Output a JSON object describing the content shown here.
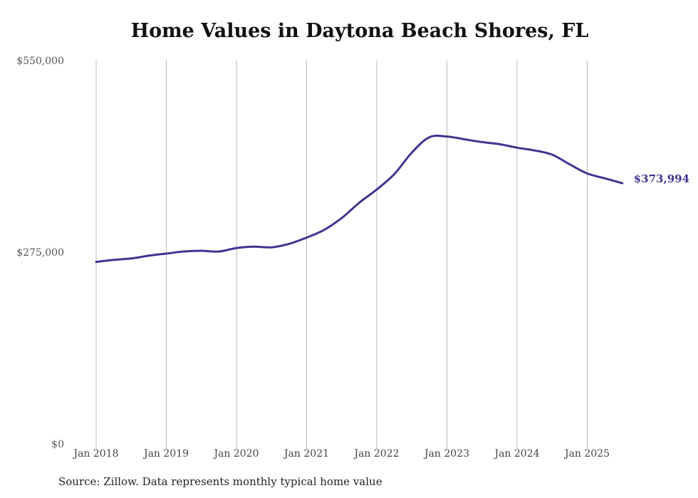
{
  "title": "Home Values in Daytona Beach Shores, FL",
  "source": "Source: Zillow. Data represents monthly typical home value",
  "chart_data": {
    "type": "line",
    "title": "Home Values in Daytona Beach Shores, FL",
    "xlabel": "",
    "ylabel": "",
    "ylim": [
      0,
      550000
    ],
    "y_ticks": [
      "$0",
      "$275,000",
      "$550,000"
    ],
    "y_tick_values": [
      0,
      275000,
      550000
    ],
    "x_ticks": [
      "Jan 2018",
      "Jan 2019",
      "Jan 2020",
      "Jan 2021",
      "Jan 2022",
      "Jan 2023",
      "Jan 2024",
      "Jan 2025"
    ],
    "x_range": [
      "2018-01",
      "2025-07"
    ],
    "grid": "vertical lines at January of each year",
    "line_color": "#3f3590",
    "end_label": "$373,994",
    "series": [
      {
        "points": [
          [
            "2018-01",
            261000
          ],
          [
            "2018-04",
            264000
          ],
          [
            "2018-07",
            266000
          ],
          [
            "2018-10",
            270000
          ],
          [
            "2019-01",
            273000
          ],
          [
            "2019-04",
            276000
          ],
          [
            "2019-07",
            277000
          ],
          [
            "2019-10",
            276000
          ],
          [
            "2020-01",
            281000
          ],
          [
            "2020-04",
            283000
          ],
          [
            "2020-07",
            282000
          ],
          [
            "2020-10",
            287000
          ],
          [
            "2021-01",
            296000
          ],
          [
            "2021-04",
            307000
          ],
          [
            "2021-07",
            324000
          ],
          [
            "2021-10",
            346000
          ],
          [
            "2022-01",
            365000
          ],
          [
            "2022-04",
            387000
          ],
          [
            "2022-07",
            418000
          ],
          [
            "2022-10",
            440000
          ],
          [
            "2023-01",
            441000
          ],
          [
            "2023-04",
            437000
          ],
          [
            "2023-07",
            433000
          ],
          [
            "2023-10",
            430000
          ],
          [
            "2024-01",
            425000
          ],
          [
            "2024-04",
            421000
          ],
          [
            "2024-07",
            415000
          ],
          [
            "2024-10",
            401000
          ],
          [
            "2025-01",
            388000
          ],
          [
            "2025-04",
            381000
          ],
          [
            "2025-07",
            373994
          ]
        ]
      }
    ]
  }
}
